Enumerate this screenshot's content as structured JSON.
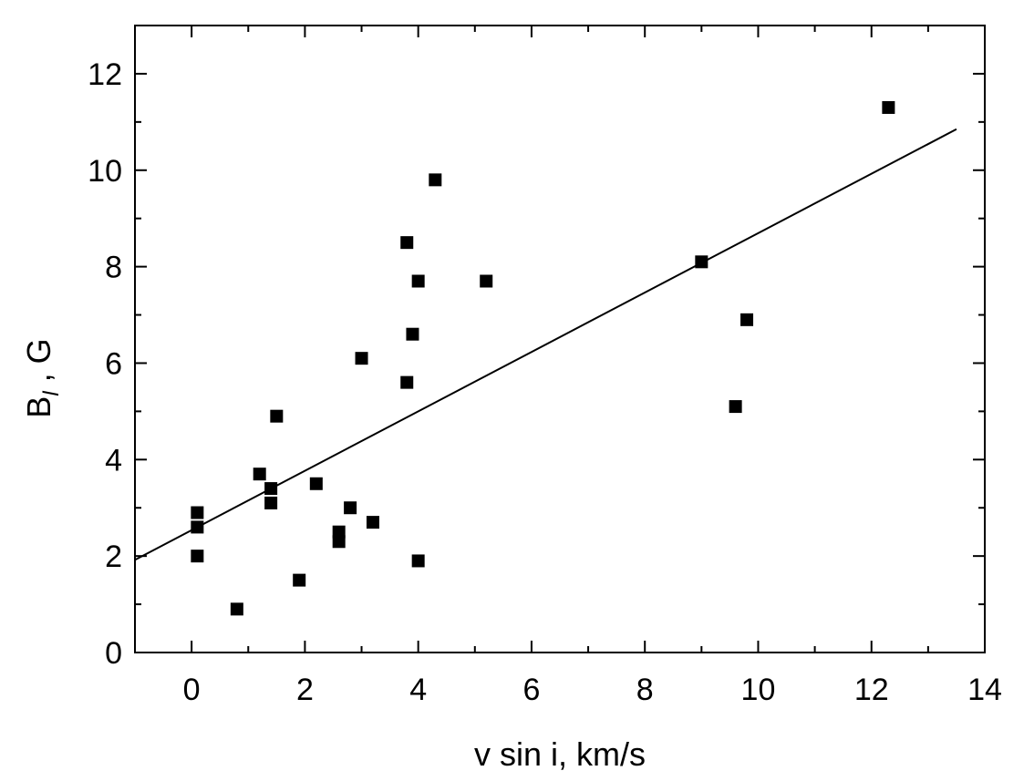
{
  "chart_data": {
    "type": "scatter",
    "title": "",
    "xlabel": "v sin i, km/s",
    "ylabel": {
      "main": "B",
      "sub": "l",
      "rest": " , G"
    },
    "xlim": [
      -1,
      14
    ],
    "ylim": [
      0,
      13
    ],
    "xticks": [
      0,
      2,
      4,
      6,
      8,
      10,
      12,
      14
    ],
    "yticks": [
      0,
      2,
      4,
      6,
      8,
      10,
      12
    ],
    "x_minor_step": 1,
    "y_minor_step": 1,
    "grid": false,
    "legend": "none",
    "marker": "square",
    "marker_color": "#000000",
    "points": [
      {
        "x": 0.1,
        "y": 2.9
      },
      {
        "x": 0.1,
        "y": 2.6
      },
      {
        "x": 0.1,
        "y": 2.0
      },
      {
        "x": 0.8,
        "y": 0.9
      },
      {
        "x": 1.2,
        "y": 3.7
      },
      {
        "x": 1.4,
        "y": 3.4
      },
      {
        "x": 1.4,
        "y": 3.1
      },
      {
        "x": 1.5,
        "y": 4.9
      },
      {
        "x": 1.9,
        "y": 1.5
      },
      {
        "x": 2.2,
        "y": 3.5
      },
      {
        "x": 2.6,
        "y": 2.5
      },
      {
        "x": 2.6,
        "y": 2.3
      },
      {
        "x": 2.8,
        "y": 3.0
      },
      {
        "x": 3.0,
        "y": 6.1
      },
      {
        "x": 3.2,
        "y": 2.7
      },
      {
        "x": 3.8,
        "y": 8.5
      },
      {
        "x": 3.8,
        "y": 5.6
      },
      {
        "x": 3.9,
        "y": 6.6
      },
      {
        "x": 4.0,
        "y": 7.7
      },
      {
        "x": 4.0,
        "y": 1.9
      },
      {
        "x": 4.3,
        "y": 9.8
      },
      {
        "x": 5.2,
        "y": 7.7
      },
      {
        "x": 9.0,
        "y": 8.1
      },
      {
        "x": 9.6,
        "y": 5.1
      },
      {
        "x": 9.8,
        "y": 6.9
      },
      {
        "x": 12.3,
        "y": 11.3
      }
    ],
    "fit_line": {
      "x": [
        -1,
        13.5
      ],
      "y": [
        1.92,
        10.85
      ]
    }
  }
}
